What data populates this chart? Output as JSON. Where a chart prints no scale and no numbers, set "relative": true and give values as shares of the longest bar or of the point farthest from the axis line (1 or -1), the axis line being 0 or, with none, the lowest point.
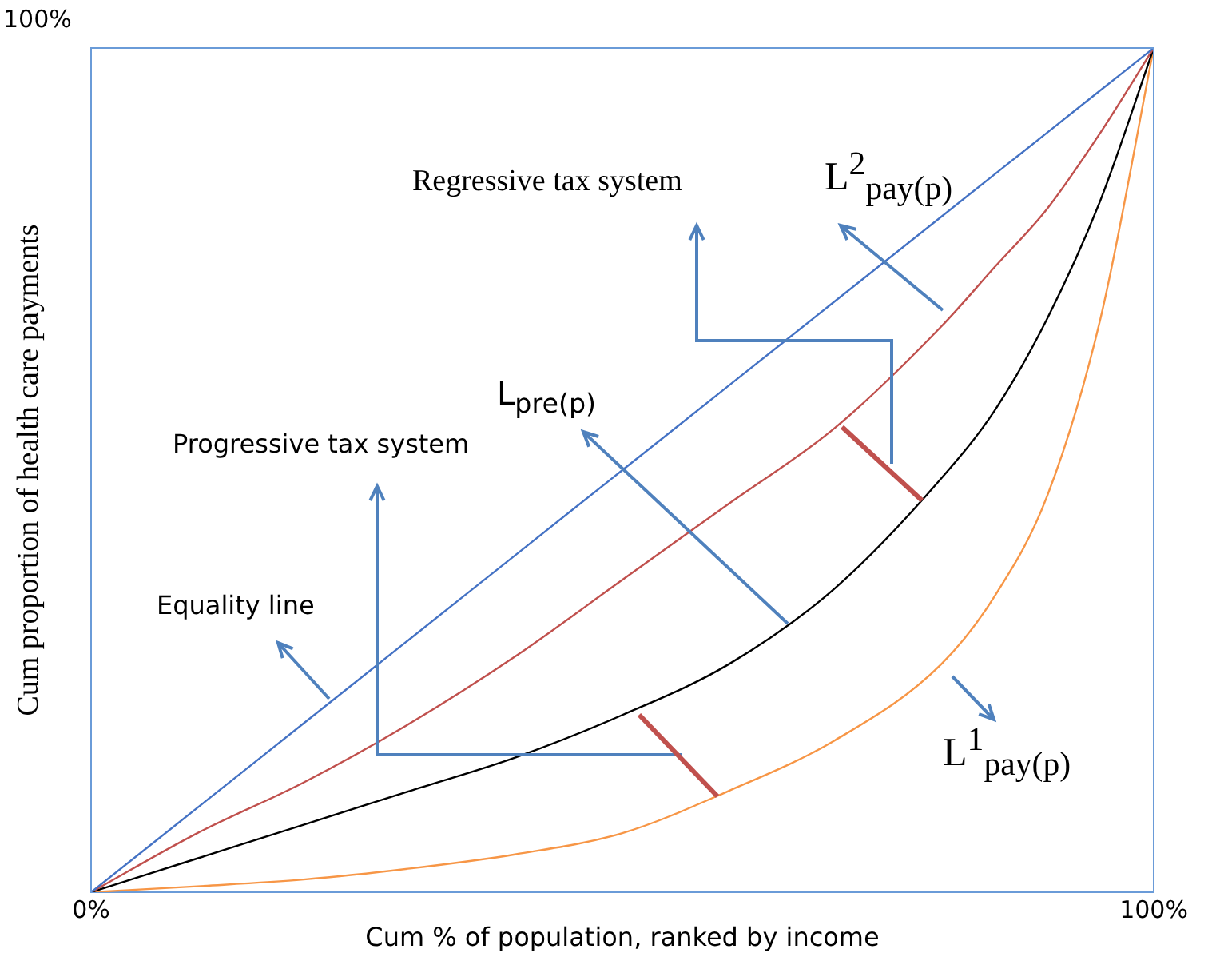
{
  "chart_data": {
    "type": "line",
    "xlabel": "Cum % of population, ranked by income",
    "ylabel": "Cum proportion of  health care payments",
    "x": [
      0,
      10,
      20,
      30,
      40,
      50,
      60,
      70,
      80,
      85,
      90,
      95,
      100
    ],
    "series": [
      {
        "color": "#4472c4",
        "values": [
          0,
          0.1,
          0.2,
          0.3,
          0.4,
          0.5,
          0.6,
          0.7,
          0.8,
          0.85,
          0.9,
          0.95,
          1
        ]
      },
      {
        "color": "#c0504d",
        "values": [
          0,
          0.07,
          0.13,
          0.2,
          0.28,
          0.37,
          0.46,
          0.55,
          0.67,
          0.74,
          0.81,
          0.9,
          1
        ]
      },
      {
        "color": "#000000",
        "values": [
          0,
          0.04,
          0.08,
          0.12,
          0.16,
          0.21,
          0.27,
          0.36,
          0.49,
          0.57,
          0.68,
          0.82,
          1
        ]
      },
      {
        "color": "#f79646",
        "values": [
          0,
          0.007,
          0.015,
          0.028,
          0.045,
          0.07,
          0.12,
          0.18,
          0.27,
          0.35,
          0.47,
          0.68,
          1
        ]
      }
    ],
    "relative": true,
    "xlim": [
      0,
      100
    ],
    "xticks": [
      {
        "value": 0,
        "label": "0%"
      },
      {
        "value": 100,
        "label": "100%"
      }
    ],
    "annotations": [
      "100%",
      "Regressive tax system",
      "L$^{2}$$_{pay(p)}$",
      "L$_{pre(p)}$",
      "Progressive tax system",
      "Equality line",
      "L$^{1}$$_{pay(p)}$"
    ],
    "legend": false,
    "marker": "none",
    "line_style": "solid"
  }
}
